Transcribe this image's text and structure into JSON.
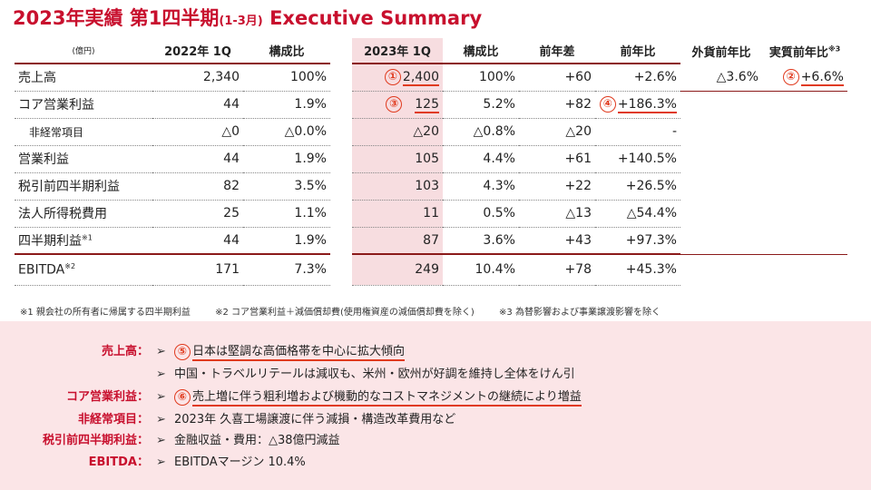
{
  "title": {
    "main": "2023年実績 第1四半期",
    "sub": "(1-3月)",
    "en": "Executive Summary"
  },
  "unit": "(億円)",
  "left_headers": [
    "2022年 1Q",
    "構成比"
  ],
  "right_headers": [
    "2023年 1Q",
    "構成比",
    "前年差",
    "前年比",
    "外貨前年比",
    "実質前年比"
  ],
  "right_header_sup": "※3",
  "rows": [
    {
      "label": "売上高",
      "sup": "",
      "y22": "2,340",
      "r22": "100%",
      "y23": "2,400",
      "r23": "100%",
      "diff": "+60",
      "yoy": "+2.6%",
      "fx": "△3.6%",
      "real": "+6.6%"
    },
    {
      "label": "コア営業利益",
      "sup": "",
      "y22": "44",
      "r22": "1.9%",
      "y23": "125",
      "r23": "5.2%",
      "diff": "+82",
      "yoy": "+186.3%",
      "fx": "",
      "real": ""
    },
    {
      "label": "非経常項目",
      "sup": "",
      "y22": "△0",
      "r22": "△0.0%",
      "y23": "△20",
      "r23": "△0.8%",
      "diff": "△20",
      "yoy": "-",
      "fx": "",
      "real": ""
    },
    {
      "label": "営業利益",
      "sup": "",
      "y22": "44",
      "r22": "1.9%",
      "y23": "105",
      "r23": "4.4%",
      "diff": "+61",
      "yoy": "+140.5%",
      "fx": "",
      "real": ""
    },
    {
      "label": "税引前四半期利益",
      "sup": "",
      "y22": "82",
      "r22": "3.5%",
      "y23": "103",
      "r23": "4.3%",
      "diff": "+22",
      "yoy": "+26.5%",
      "fx": "",
      "real": ""
    },
    {
      "label": "法人所得税費用",
      "sup": "",
      "y22": "25",
      "r22": "1.1%",
      "y23": "11",
      "r23": "0.5%",
      "diff": "△13",
      "yoy": "△54.4%",
      "fx": "",
      "real": ""
    },
    {
      "label": "四半期利益",
      "sup": "※1",
      "y22": "44",
      "r22": "1.9%",
      "y23": "87",
      "r23": "3.6%",
      "diff": "+43",
      "yoy": "+97.3%",
      "fx": "",
      "real": ""
    },
    {
      "label": "EBITDA",
      "sup": "※2",
      "y22": "171",
      "r22": "7.3%",
      "y23": "249",
      "r23": "10.4%",
      "diff": "+78",
      "yoy": "+45.3%",
      "fx": "",
      "real": ""
    }
  ],
  "markers": [
    "①",
    "②",
    "③",
    "④",
    "⑤",
    "⑥"
  ],
  "footnotes": [
    "※1 親会社の所有者に帰属する四半期利益",
    "※2 コア営業利益＋減価償却費(使用権資産の減価償却費を除く)",
    "※3 為替影響および事業譲渡影響を除く"
  ],
  "summary": [
    {
      "label": "売上高：",
      "text": "日本は堅調な高価格帯を中心に拡大傾向"
    },
    {
      "label": "",
      "text": "中国・トラベルリテールは減収も、米州・欧州が好調を維持し全体をけん引"
    },
    {
      "label": "コア営業利益：",
      "text": "売上増に伴う粗利増および機動的なコストマネジメントの継続により増益"
    },
    {
      "label": "非経常項目：",
      "text": "2023年 久喜工場譲渡に伴う減損・構造改革費用など"
    },
    {
      "label": "税引前四半期利益：",
      "text": "金融収益・費用：△38億円減益"
    },
    {
      "label": "EBITDA：",
      "text": "EBITDAマージン 10.4%"
    }
  ],
  "arrow_glyph": "➢"
}
